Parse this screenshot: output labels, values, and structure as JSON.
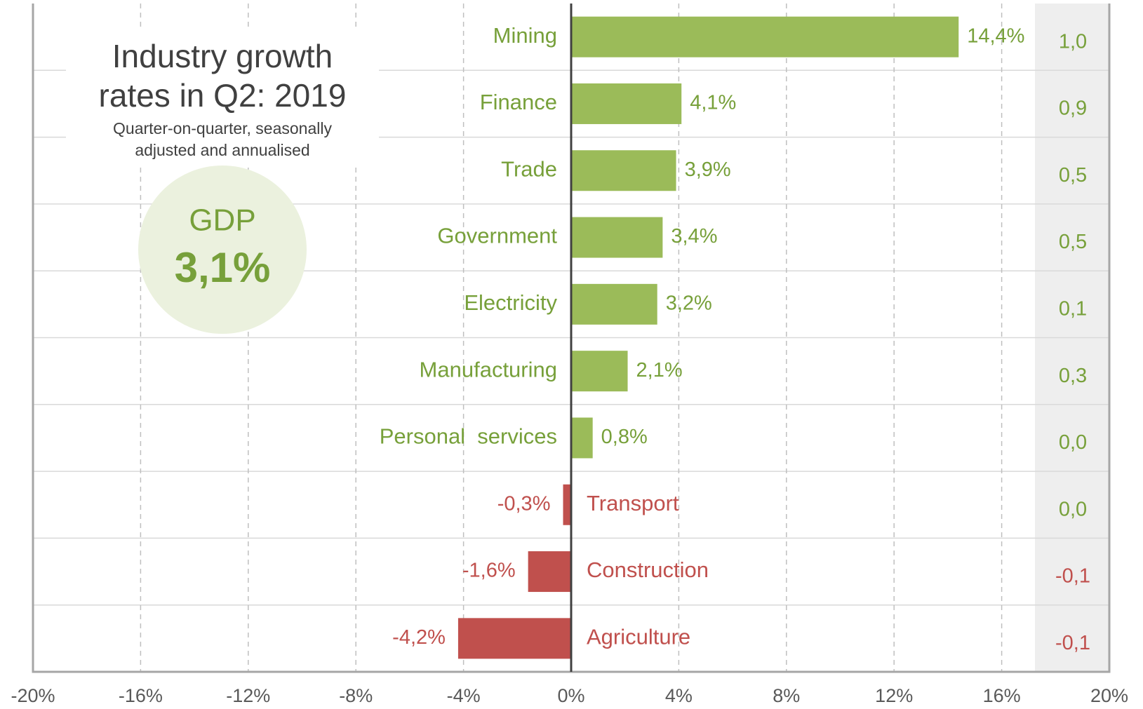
{
  "chart_data": {
    "type": "barh",
    "title": "Industry growth rates in Q2: 2019",
    "subtitle": "Quarter-on-quarter, seasonally adjusted and annualised",
    "gdp_label": "GDP",
    "gdp_value": "3,1%",
    "categories": [
      "Mining",
      "Finance",
      "Trade",
      "Government",
      "Electricity",
      "Manufacturing",
      "Personal  services",
      "Transport",
      "Construction",
      "Agriculture"
    ],
    "values": [
      14.4,
      4.1,
      3.9,
      3.4,
      3.2,
      2.1,
      0.8,
      -0.3,
      -1.6,
      -4.2
    ],
    "value_labels": [
      "14,4%",
      "4,1%",
      "3,9%",
      "3,4%",
      "3,2%",
      "2,1%",
      "0,8%",
      "-0,3%",
      "-1,6%",
      "-4,2%"
    ],
    "contributions": [
      1.0,
      0.9,
      0.5,
      0.5,
      0.1,
      0.3,
      0.0,
      0.0,
      -0.1,
      -0.1
    ],
    "contribution_labels": [
      "1,0",
      "0,9",
      "0,5",
      "0,5",
      "0,1",
      "0,3",
      "0,0",
      "0,0",
      "-0,1",
      "-0,1"
    ],
    "positive_color": "#9bbb59",
    "negative_color": "#c0504d",
    "xlim": [
      -20,
      20
    ],
    "xticks": [
      {
        "value": -20,
        "label": "-20%"
      },
      {
        "value": -16,
        "label": "-16%"
      },
      {
        "value": -12,
        "label": "-12%"
      },
      {
        "value": -8,
        "label": "-8%"
      },
      {
        "value": -4,
        "label": "-4%"
      },
      {
        "value": 0,
        "label": "0%"
      },
      {
        "value": 4,
        "label": "4%"
      },
      {
        "value": 8,
        "label": "8%"
      },
      {
        "value": 12,
        "label": "12%"
      },
      {
        "value": 16,
        "label": "16%"
      },
      {
        "value": 20,
        "label": "20%"
      }
    ],
    "grid": true
  }
}
